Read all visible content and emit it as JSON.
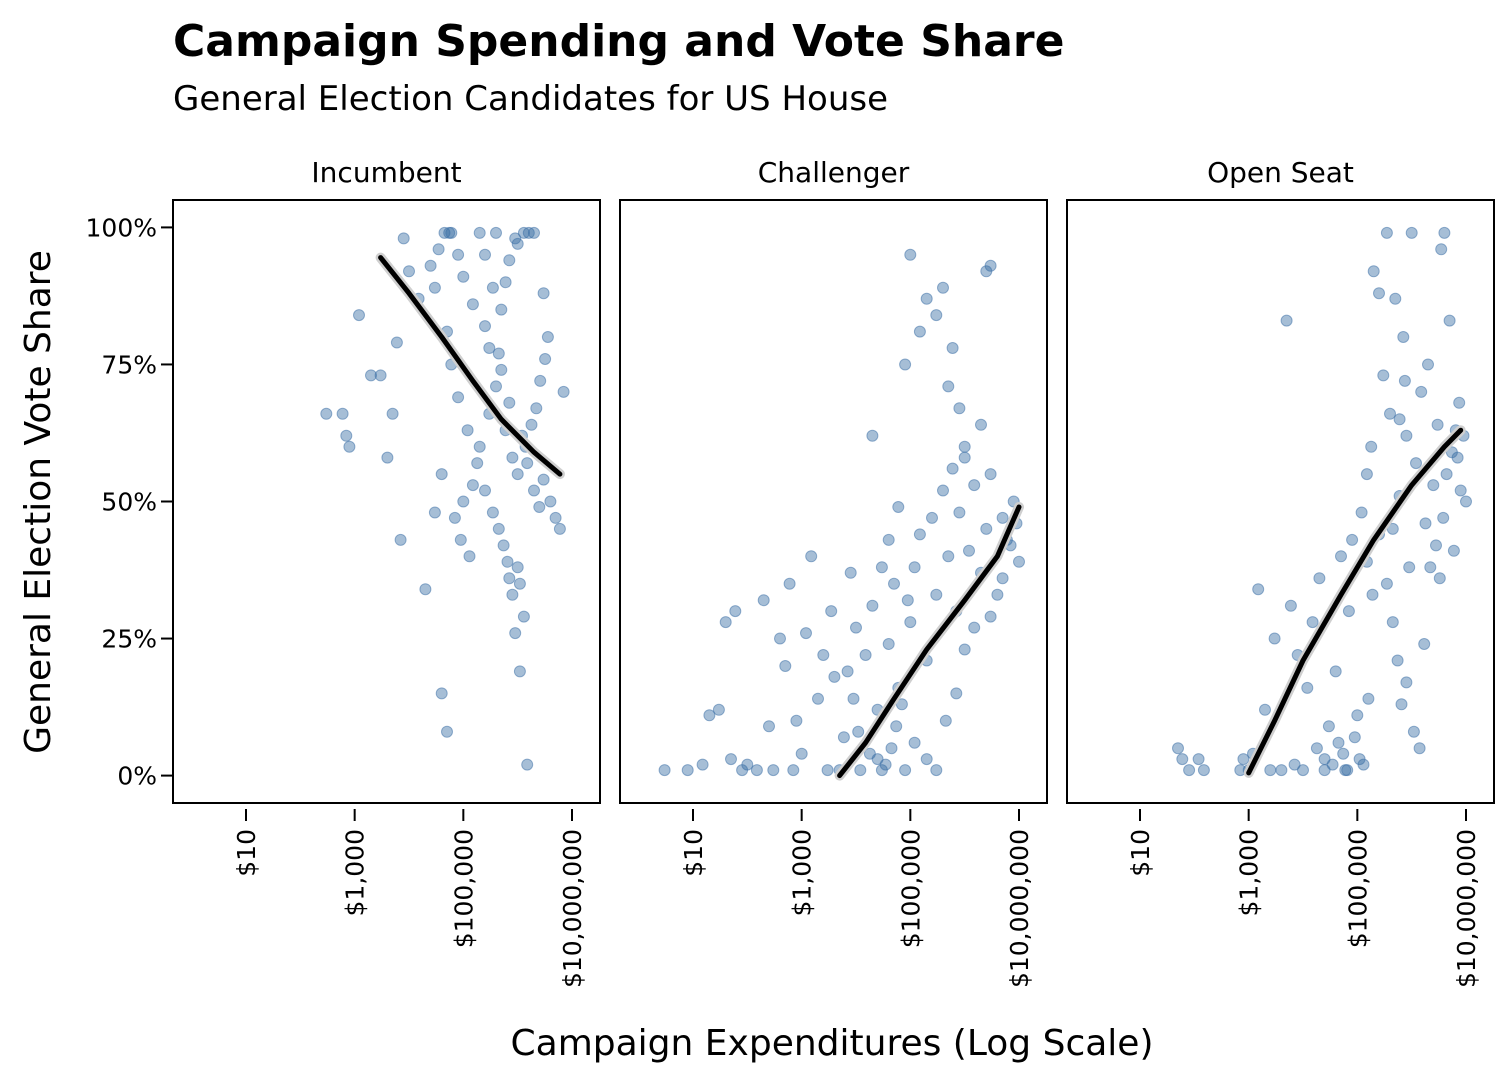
{
  "title": "Campaign Spending and Vote Share",
  "subtitle": "General Election Candidates for US House",
  "chart_data": {
    "type": "scatter",
    "x_scale": "log10",
    "xlabel": "Campaign Expenditures (Log Scale)",
    "ylabel": "General Election Vote Share",
    "x_ticks": [
      10,
      1000,
      100000,
      10000000
    ],
    "x_tick_labels": [
      "$10",
      "$1,000",
      "$100,000",
      "$10,000,000"
    ],
    "y_ticks": [
      0,
      25,
      50,
      75,
      100
    ],
    "y_tick_labels": [
      "0%",
      "25%",
      "50%",
      "75%",
      "100%"
    ],
    "xlim": [
      1,
      20000000
    ],
    "ylim": [
      -5,
      105
    ],
    "point_color": "#3a6ea5",
    "line_color": "#000000",
    "facets": [
      {
        "label": "Incumbent",
        "fit_line": [
          [
            3000,
            94.5
          ],
          [
            10000,
            88
          ],
          [
            40000,
            80
          ],
          [
            150000,
            72
          ],
          [
            500000,
            65
          ],
          [
            2000000,
            59
          ],
          [
            6000000,
            55
          ]
        ],
        "points": [
          [
            300,
            66
          ],
          [
            600,
            66
          ],
          [
            700,
            62
          ],
          [
            800,
            60
          ],
          [
            1200,
            84
          ],
          [
            2000,
            73
          ],
          [
            3000,
            73
          ],
          [
            4000,
            58
          ],
          [
            5000,
            66
          ],
          [
            6000,
            79
          ],
          [
            7000,
            43
          ],
          [
            8000,
            98
          ],
          [
            10000,
            92
          ],
          [
            15000,
            87
          ],
          [
            20000,
            34
          ],
          [
            30000,
            48
          ],
          [
            40000,
            55
          ],
          [
            40000,
            15
          ],
          [
            50000,
            8
          ],
          [
            60000,
            99
          ],
          [
            80000,
            95
          ],
          [
            100000,
            91
          ],
          [
            150000,
            86
          ],
          [
            200000,
            99
          ],
          [
            250000,
            82
          ],
          [
            300000,
            78
          ],
          [
            400000,
            99
          ],
          [
            500000,
            74
          ],
          [
            700000,
            68
          ],
          [
            900000,
            98
          ],
          [
            1200000,
            62
          ],
          [
            1500000,
            57
          ],
          [
            2000000,
            52
          ],
          [
            2500000,
            49
          ],
          [
            3000000,
            54
          ],
          [
            4000000,
            50
          ],
          [
            5000000,
            47
          ],
          [
            6000000,
            45
          ],
          [
            7000000,
            70
          ],
          [
            3000000,
            88
          ],
          [
            120000,
            63
          ],
          [
            180000,
            57
          ],
          [
            250000,
            52
          ],
          [
            350000,
            48
          ],
          [
            450000,
            45
          ],
          [
            550000,
            42
          ],
          [
            650000,
            39
          ],
          [
            700000,
            36
          ],
          [
            800000,
            33
          ],
          [
            1000000,
            38
          ],
          [
            1100000,
            35
          ],
          [
            1300000,
            29
          ],
          [
            80000,
            69
          ],
          [
            60000,
            75
          ],
          [
            50000,
            81
          ],
          [
            30000,
            89
          ],
          [
            25000,
            93
          ],
          [
            35000,
            96
          ],
          [
            45000,
            99
          ],
          [
            55000,
            99
          ],
          [
            200000,
            60
          ],
          [
            300000,
            66
          ],
          [
            400000,
            71
          ],
          [
            600000,
            63
          ],
          [
            800000,
            58
          ],
          [
            1000000,
            55
          ],
          [
            1400000,
            60
          ],
          [
            1800000,
            64
          ],
          [
            2200000,
            67
          ],
          [
            2600000,
            72
          ],
          [
            3200000,
            76
          ],
          [
            3600000,
            80
          ],
          [
            900000,
            26
          ],
          [
            1100000,
            19
          ],
          [
            1500000,
            2
          ],
          [
            150000,
            53
          ],
          [
            100000,
            50
          ],
          [
            70000,
            47
          ],
          [
            90000,
            43
          ],
          [
            130000,
            40
          ],
          [
            500000,
            85
          ],
          [
            600000,
            90
          ],
          [
            700000,
            94
          ],
          [
            1000000,
            97
          ],
          [
            1300000,
            99
          ],
          [
            1600000,
            99
          ],
          [
            2000000,
            99
          ],
          [
            250000,
            95
          ],
          [
            350000,
            89
          ],
          [
            450000,
            77
          ]
        ]
      },
      {
        "label": "Challenger",
        "fit_line": [
          [
            5000,
            0
          ],
          [
            15000,
            6
          ],
          [
            50000,
            14
          ],
          [
            200000,
            23
          ],
          [
            1000000,
            32
          ],
          [
            4000000,
            40
          ],
          [
            10000000,
            49
          ]
        ],
        "points": [
          [
            3,
            1
          ],
          [
            8,
            1
          ],
          [
            15,
            2
          ],
          [
            20,
            11
          ],
          [
            30,
            12
          ],
          [
            40,
            28
          ],
          [
            50,
            3
          ],
          [
            60,
            30
          ],
          [
            80,
            1
          ],
          [
            100,
            2
          ],
          [
            150,
            1
          ],
          [
            200,
            32
          ],
          [
            250,
            9
          ],
          [
            300,
            1
          ],
          [
            400,
            25
          ],
          [
            500,
            20
          ],
          [
            600,
            35
          ],
          [
            700,
            1
          ],
          [
            800,
            10
          ],
          [
            1000,
            4
          ],
          [
            1200,
            26
          ],
          [
            1500,
            40
          ],
          [
            2000,
            14
          ],
          [
            2500,
            22
          ],
          [
            3000,
            1
          ],
          [
            3500,
            30
          ],
          [
            4000,
            18
          ],
          [
            5000,
            1
          ],
          [
            6000,
            7
          ],
          [
            8000,
            37
          ],
          [
            10000,
            27
          ],
          [
            12000,
            1
          ],
          [
            15000,
            22
          ],
          [
            20000,
            31
          ],
          [
            25000,
            12
          ],
          [
            30000,
            1
          ],
          [
            40000,
            24
          ],
          [
            50000,
            35
          ],
          [
            60000,
            16
          ],
          [
            80000,
            1
          ],
          [
            100000,
            28
          ],
          [
            120000,
            38
          ],
          [
            150000,
            44
          ],
          [
            200000,
            21
          ],
          [
            250000,
            47
          ],
          [
            300000,
            33
          ],
          [
            400000,
            52
          ],
          [
            500000,
            40
          ],
          [
            600000,
            56
          ],
          [
            700000,
            30
          ],
          [
            800000,
            48
          ],
          [
            1000000,
            58
          ],
          [
            1200000,
            41
          ],
          [
            1500000,
            53
          ],
          [
            2000000,
            37
          ],
          [
            2500000,
            45
          ],
          [
            3000000,
            55
          ],
          [
            4000000,
            33
          ],
          [
            5000000,
            47
          ],
          [
            6000000,
            43
          ],
          [
            8000000,
            50
          ],
          [
            10000000,
            39
          ],
          [
            20000,
            62
          ],
          [
            80000,
            75
          ],
          [
            150000,
            81
          ],
          [
            200000,
            87
          ],
          [
            300000,
            84
          ],
          [
            400000,
            89
          ],
          [
            500000,
            71
          ],
          [
            600000,
            78
          ],
          [
            800000,
            67
          ],
          [
            1000000,
            60
          ],
          [
            2000000,
            64
          ],
          [
            3000000,
            93
          ],
          [
            2500000,
            92
          ],
          [
            100000,
            95
          ],
          [
            60000,
            49
          ],
          [
            40000,
            43
          ],
          [
            30000,
            38
          ],
          [
            90000,
            32
          ],
          [
            7000,
            19
          ],
          [
            9000,
            14
          ],
          [
            11000,
            8
          ],
          [
            18000,
            4
          ],
          [
            25000,
            3
          ],
          [
            35000,
            2
          ],
          [
            45000,
            5
          ],
          [
            55000,
            9
          ],
          [
            70000,
            13
          ],
          [
            120000,
            6
          ],
          [
            200000,
            3
          ],
          [
            300000,
            1
          ],
          [
            450000,
            10
          ],
          [
            700000,
            15
          ],
          [
            1000000,
            23
          ],
          [
            1500000,
            27
          ],
          [
            3000000,
            29
          ],
          [
            5000000,
            36
          ],
          [
            7000000,
            42
          ],
          [
            9000000,
            46
          ]
        ]
      },
      {
        "label": "Open Seat",
        "fit_line": [
          [
            1000,
            0.5
          ],
          [
            3000,
            10
          ],
          [
            10000,
            21
          ],
          [
            50000,
            33
          ],
          [
            200000,
            43
          ],
          [
            1000000,
            53
          ],
          [
            4000000,
            60
          ],
          [
            8000000,
            63
          ]
        ],
        "points": [
          [
            50,
            5
          ],
          [
            60,
            3
          ],
          [
            80,
            1
          ],
          [
            120,
            3
          ],
          [
            150,
            1
          ],
          [
            700,
            1
          ],
          [
            800,
            3
          ],
          [
            1000,
            1
          ],
          [
            1200,
            4
          ],
          [
            1500,
            34
          ],
          [
            2000,
            12
          ],
          [
            2500,
            1
          ],
          [
            3000,
            25
          ],
          [
            4000,
            1
          ],
          [
            5000,
            83
          ],
          [
            6000,
            31
          ],
          [
            7000,
            2
          ],
          [
            8000,
            22
          ],
          [
            10000,
            1
          ],
          [
            12000,
            16
          ],
          [
            15000,
            28
          ],
          [
            18000,
            5
          ],
          [
            20000,
            36
          ],
          [
            25000,
            1
          ],
          [
            30000,
            9
          ],
          [
            40000,
            19
          ],
          [
            50000,
            40
          ],
          [
            60000,
            1
          ],
          [
            70000,
            30
          ],
          [
            80000,
            43
          ],
          [
            100000,
            11
          ],
          [
            120000,
            48
          ],
          [
            150000,
            55
          ],
          [
            180000,
            60
          ],
          [
            200000,
            92
          ],
          [
            250000,
            88
          ],
          [
            300000,
            73
          ],
          [
            350000,
            99
          ],
          [
            400000,
            66
          ],
          [
            450000,
            45
          ],
          [
            500000,
            87
          ],
          [
            600000,
            51
          ],
          [
            700000,
            80
          ],
          [
            800000,
            62
          ],
          [
            900000,
            38
          ],
          [
            1000000,
            99
          ],
          [
            1200000,
            57
          ],
          [
            1500000,
            70
          ],
          [
            1800000,
            46
          ],
          [
            2000000,
            75
          ],
          [
            2500000,
            53
          ],
          [
            3000000,
            64
          ],
          [
            3500000,
            96
          ],
          [
            4000000,
            99
          ],
          [
            5000000,
            83
          ],
          [
            6000000,
            41
          ],
          [
            7000000,
            58
          ],
          [
            8000000,
            52
          ],
          [
            10000000,
            50
          ],
          [
            9000000,
            62
          ],
          [
            150000,
            39
          ],
          [
            250000,
            44
          ],
          [
            350000,
            35
          ],
          [
            450000,
            28
          ],
          [
            550000,
            21
          ],
          [
            650000,
            13
          ],
          [
            800000,
            17
          ],
          [
            1100000,
            8
          ],
          [
            1400000,
            5
          ],
          [
            1700000,
            24
          ],
          [
            2200000,
            38
          ],
          [
            2800000,
            42
          ],
          [
            3300000,
            36
          ],
          [
            3800000,
            47
          ],
          [
            4400000,
            55
          ],
          [
            5500000,
            59
          ],
          [
            6500000,
            63
          ],
          [
            7500000,
            68
          ],
          [
            600000,
            65
          ],
          [
            750000,
            72
          ],
          [
            25000,
            3
          ],
          [
            35000,
            2
          ],
          [
            45000,
            6
          ],
          [
            55000,
            4
          ],
          [
            65000,
            1
          ],
          [
            90000,
            7
          ],
          [
            110000,
            3
          ],
          [
            130000,
            2
          ],
          [
            160000,
            14
          ],
          [
            190000,
            33
          ]
        ]
      }
    ]
  }
}
